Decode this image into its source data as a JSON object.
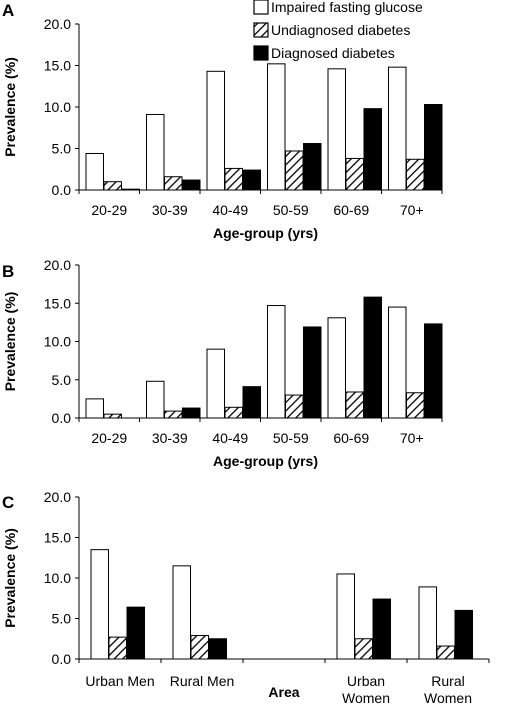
{
  "legend": {
    "items": [
      {
        "label": "Impaired fasting glucose",
        "style": "open"
      },
      {
        "label": "Undiagnosed diabetes",
        "style": "hatched"
      },
      {
        "label": "Diagnosed diabetes",
        "style": "solid"
      }
    ]
  },
  "chart_data": [
    {
      "type": "bar",
      "panel": "A",
      "categories": [
        "20-29",
        "30-39",
        "40-49",
        "50-59",
        "60-69",
        "70+"
      ],
      "xlabel": "Age-group (yrs)",
      "ylabel": "Prevalence (%)",
      "ylim": [
        0,
        20
      ],
      "yticks": [
        "0.0",
        "5.0",
        "10.0",
        "15.0",
        "20.0"
      ],
      "series": [
        {
          "name": "Impaired fasting glucose",
          "values": [
            4.4,
            9.1,
            14.3,
            15.2,
            14.6,
            14.8
          ]
        },
        {
          "name": "Undiagnosed diabetes",
          "values": [
            1.0,
            1.6,
            2.6,
            4.7,
            3.8,
            3.7
          ]
        },
        {
          "name": "Diagnosed diabetes",
          "values": [
            0.1,
            1.2,
            2.4,
            5.6,
            9.8,
            10.3
          ]
        }
      ]
    },
    {
      "type": "bar",
      "panel": "B",
      "categories": [
        "20-29",
        "30-39",
        "40-49",
        "50-59",
        "60-69",
        "70+"
      ],
      "xlabel": "Age-group (yrs)",
      "ylabel": "Prevalence (%)",
      "ylim": [
        0,
        20
      ],
      "yticks": [
        "0.0",
        "5.0",
        "10.0",
        "15.0",
        "20.0"
      ],
      "series": [
        {
          "name": "Impaired fasting glucose",
          "values": [
            2.5,
            4.8,
            9.0,
            14.7,
            13.1,
            14.5
          ]
        },
        {
          "name": "Undiagnosed diabetes",
          "values": [
            0.5,
            0.9,
            1.4,
            3.0,
            3.4,
            3.3
          ]
        },
        {
          "name": "Diagnosed diabetes",
          "values": [
            0.0,
            1.3,
            4.1,
            11.9,
            15.8,
            12.3
          ]
        }
      ]
    },
    {
      "type": "bar",
      "panel": "C",
      "categories": [
        "Urban Men",
        "Rural Men",
        "",
        "Urban Women",
        "Rural Women"
      ],
      "category_lines": [
        [
          "Urban Men"
        ],
        [
          "Rural Men"
        ],
        [],
        [
          "Urban",
          "Women"
        ],
        [
          "Rural",
          "Women"
        ]
      ],
      "xlabel": "Area",
      "ylabel": "Prevalence (%)",
      "ylim": [
        0,
        20
      ],
      "yticks": [
        "0.0",
        "5.0",
        "10.0",
        "15.0",
        "20.0"
      ],
      "series": [
        {
          "name": "Impaired fasting glucose",
          "values": [
            13.5,
            11.5,
            null,
            10.5,
            8.9
          ]
        },
        {
          "name": "Undiagnosed diabetes",
          "values": [
            2.7,
            2.9,
            null,
            2.5,
            1.6
          ]
        },
        {
          "name": "Diagnosed diabetes",
          "values": [
            6.4,
            2.5,
            null,
            7.4,
            6.0
          ]
        }
      ]
    }
  ]
}
